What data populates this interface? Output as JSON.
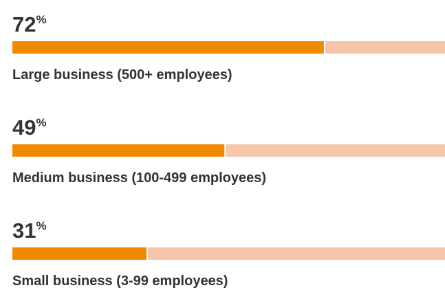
{
  "chart_data": {
    "type": "bar",
    "categories": [
      "Large business (500+ employees)",
      "Medium business (100-499 employees)",
      "Small business (3-99 employees)"
    ],
    "values": [
      72,
      49,
      31
    ],
    "unit": "%",
    "xlim": [
      0,
      100
    ],
    "color": "#ef8a00",
    "track_color": "#f5c6a9"
  }
}
